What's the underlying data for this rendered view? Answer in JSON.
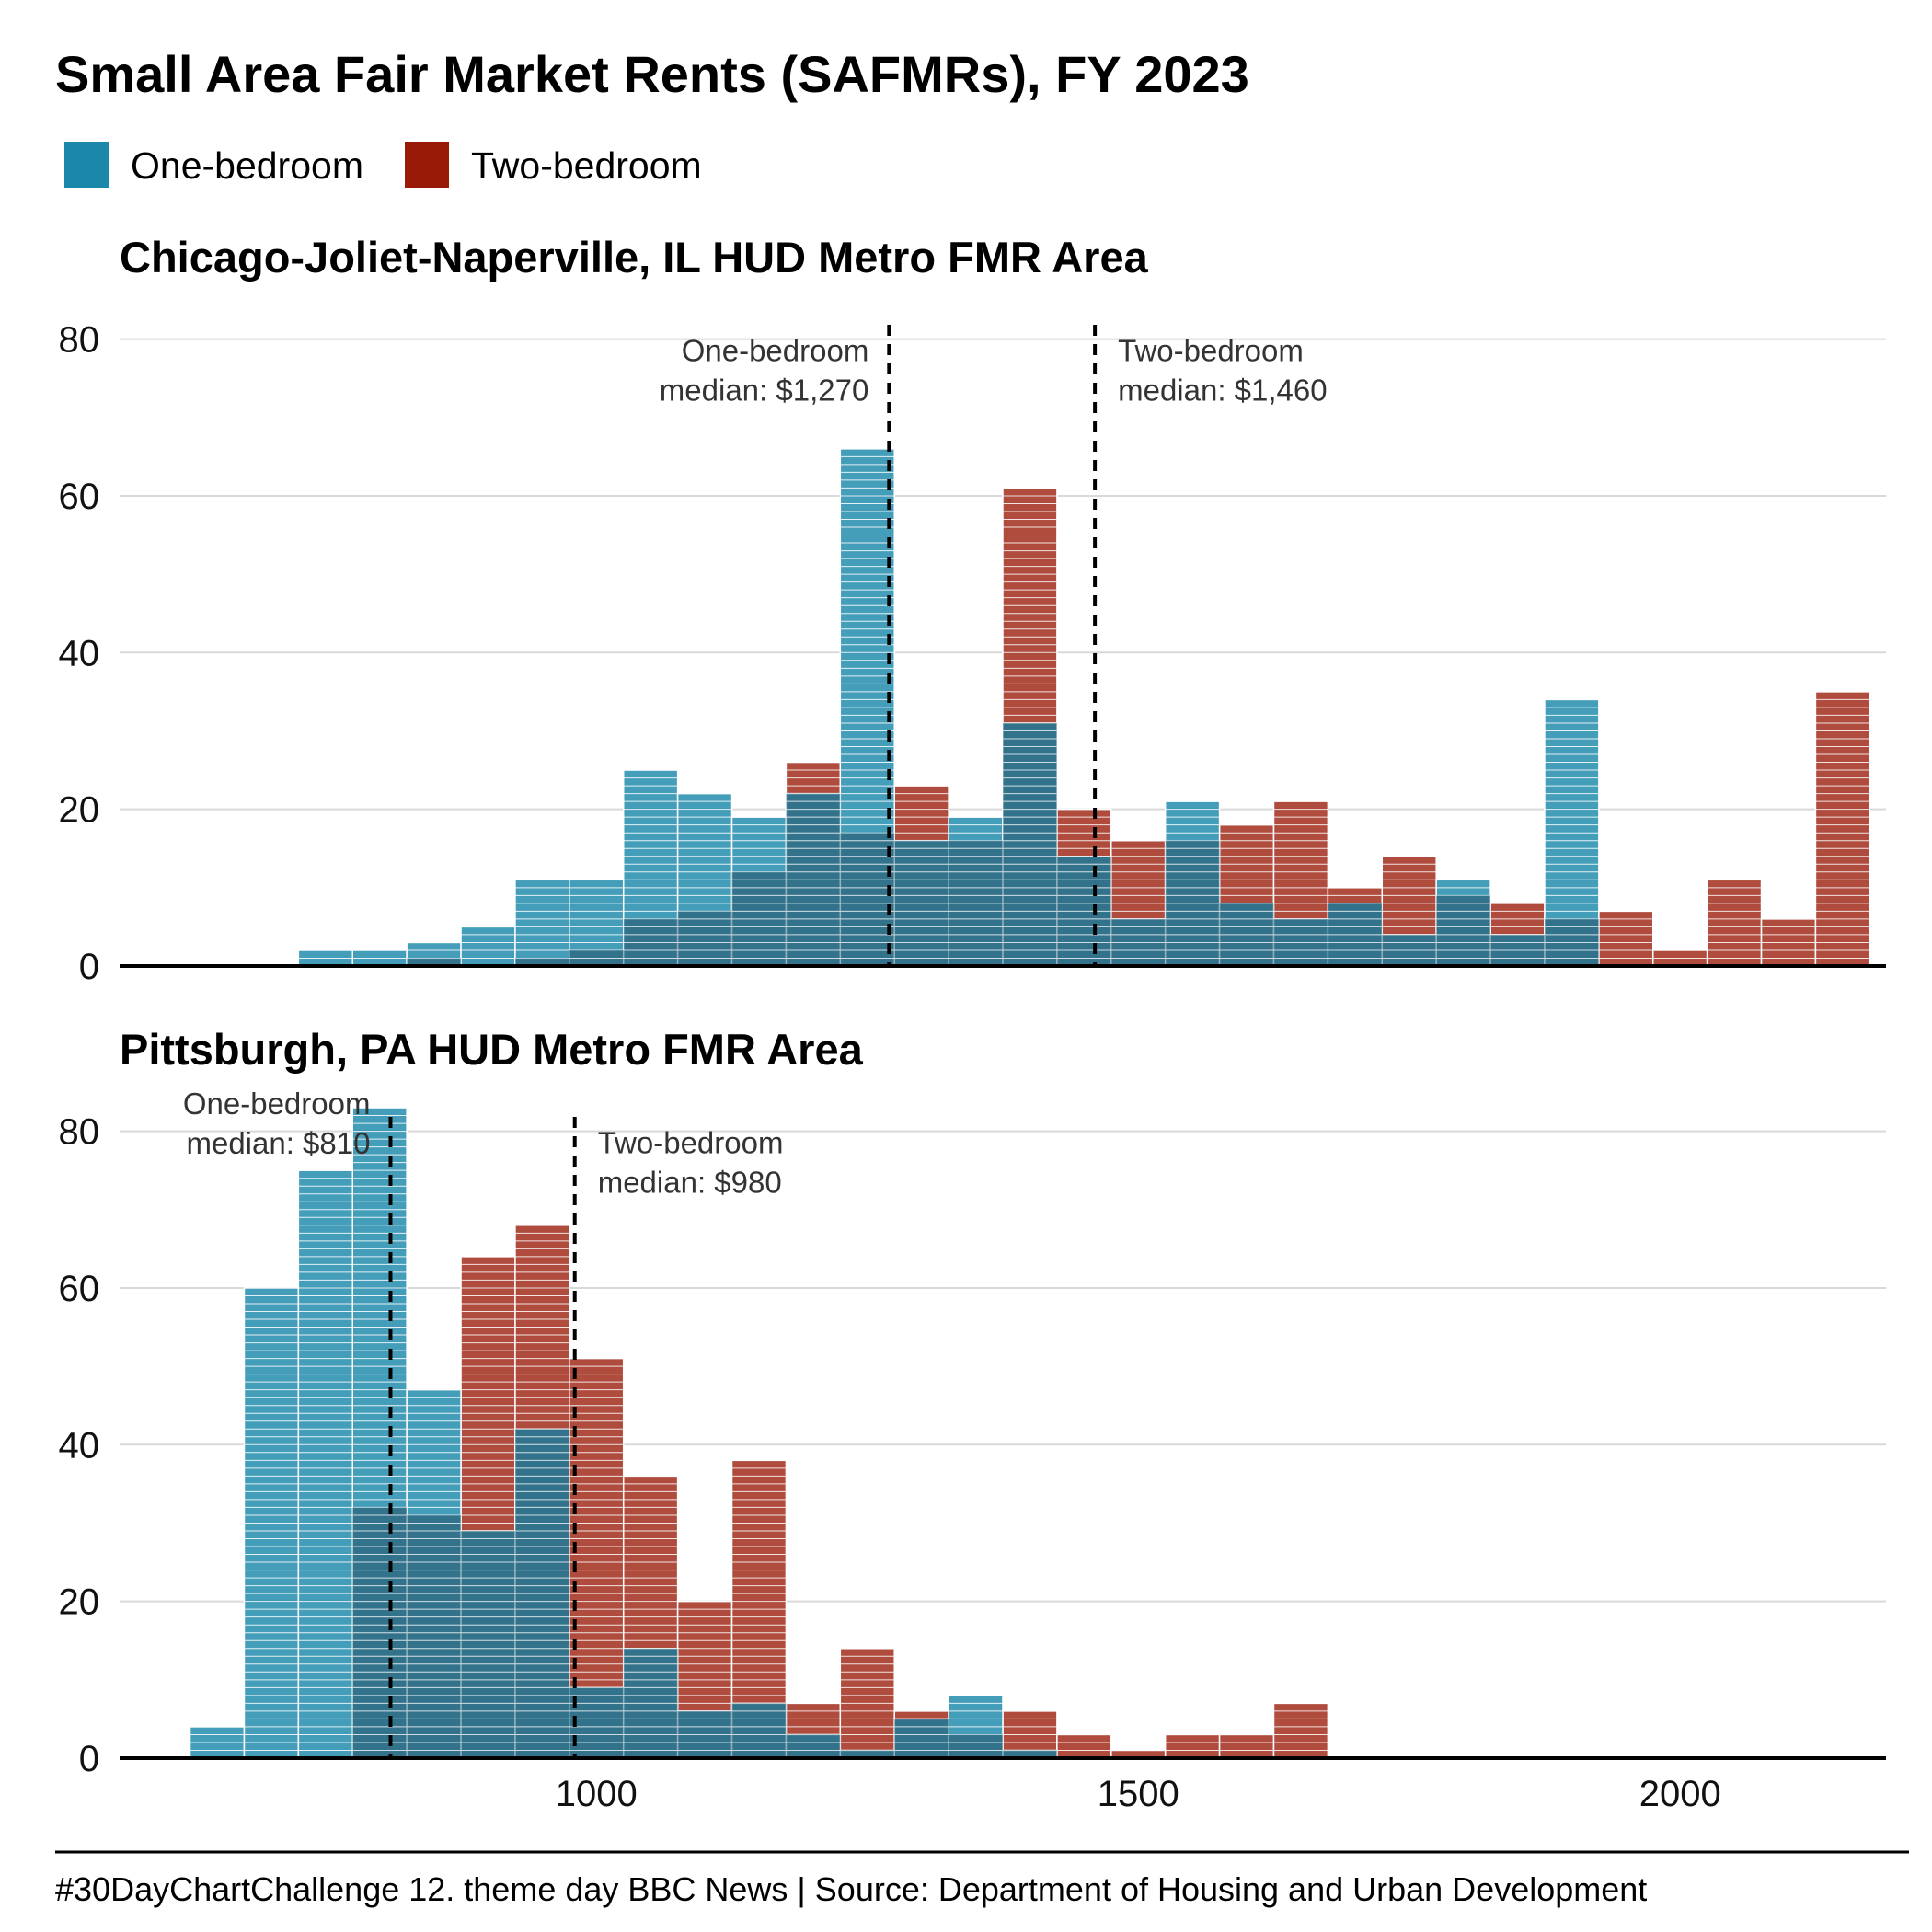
{
  "title": "Small Area Fair Market Rents (SAFMRs), FY 2023",
  "legend": [
    {
      "label": "One-bedroom",
      "color": "#1b87aa"
    },
    {
      "label": "Two-bedroom",
      "color": "#991a07"
    }
  ],
  "caption": "#30DayChartChallenge 12. theme day BBC News | Source: Department of Housing and Urban Development",
  "chart_data": [
    {
      "type": "bar",
      "subtitle": "Chicago-Joliet-Naperville, IL HUD Metro FMR Area",
      "x_range": [
        560,
        2190
      ],
      "bin_width": 50,
      "ylim": [
        0,
        85
      ],
      "y_ticks": [
        0,
        20,
        40,
        60,
        80
      ],
      "x_ticks": [],
      "grid": "horizontal",
      "series": [
        {
          "name": "One-bedroom",
          "color": "#1b87aa",
          "bins": [
            {
              "x0": 725,
              "value": 2
            },
            {
              "x0": 775,
              "value": 2
            },
            {
              "x0": 825,
              "value": 3
            },
            {
              "x0": 875,
              "value": 5
            },
            {
              "x0": 925,
              "value": 11
            },
            {
              "x0": 975,
              "value": 11
            },
            {
              "x0": 1025,
              "value": 25
            },
            {
              "x0": 1075,
              "value": 22
            },
            {
              "x0": 1125,
              "value": 19
            },
            {
              "x0": 1175,
              "value": 22
            },
            {
              "x0": 1225,
              "value": 66
            },
            {
              "x0": 1275,
              "value": 16
            },
            {
              "x0": 1325,
              "value": 19
            },
            {
              "x0": 1375,
              "value": 31
            },
            {
              "x0": 1425,
              "value": 14
            },
            {
              "x0": 1475,
              "value": 6
            },
            {
              "x0": 1525,
              "value": 21
            },
            {
              "x0": 1575,
              "value": 8
            },
            {
              "x0": 1625,
              "value": 6
            },
            {
              "x0": 1675,
              "value": 8
            },
            {
              "x0": 1725,
              "value": 4
            },
            {
              "x0": 1775,
              "value": 11
            },
            {
              "x0": 1825,
              "value": 4
            },
            {
              "x0": 1875,
              "value": 34
            }
          ]
        },
        {
          "name": "Two-bedroom",
          "color": "#991a07",
          "bins": [
            {
              "x0": 825,
              "value": 1
            },
            {
              "x0": 925,
              "value": 1
            },
            {
              "x0": 975,
              "value": 2
            },
            {
              "x0": 1025,
              "value": 6
            },
            {
              "x0": 1075,
              "value": 7
            },
            {
              "x0": 1125,
              "value": 12
            },
            {
              "x0": 1175,
              "value": 26
            },
            {
              "x0": 1225,
              "value": 17
            },
            {
              "x0": 1275,
              "value": 23
            },
            {
              "x0": 1325,
              "value": 16
            },
            {
              "x0": 1375,
              "value": 61
            },
            {
              "x0": 1425,
              "value": 20
            },
            {
              "x0": 1475,
              "value": 16
            },
            {
              "x0": 1525,
              "value": 16
            },
            {
              "x0": 1575,
              "value": 18
            },
            {
              "x0": 1625,
              "value": 21
            },
            {
              "x0": 1675,
              "value": 10
            },
            {
              "x0": 1725,
              "value": 14
            },
            {
              "x0": 1775,
              "value": 9
            },
            {
              "x0": 1825,
              "value": 8
            },
            {
              "x0": 1875,
              "value": 6
            },
            {
              "x0": 1925,
              "value": 7
            },
            {
              "x0": 1975,
              "value": 2
            },
            {
              "x0": 2025,
              "value": 11
            },
            {
              "x0": 2075,
              "value": 6
            },
            {
              "x0": 2125,
              "value": 35
            }
          ]
        }
      ],
      "medians": [
        {
          "series": "One-bedroom",
          "value": 1270,
          "lines": [
            "One-bedroom",
            "median: $1,270"
          ],
          "label_side": "left",
          "label_top": 78.5
        },
        {
          "series": "Two-bedroom",
          "value": 1460,
          "lines": [
            "Two-bedroom",
            "median: $1,460"
          ],
          "label_side": "right",
          "label_top": 78.5
        }
      ]
    },
    {
      "type": "bar",
      "subtitle": "Pittsburgh, PA HUD Metro FMR Area",
      "x_range": [
        560,
        2190
      ],
      "bin_width": 50,
      "ylim": [
        0,
        85
      ],
      "y_ticks": [
        0,
        20,
        40,
        60,
        80
      ],
      "x_ticks": [
        1000,
        1500,
        2000
      ],
      "grid": "horizontal",
      "series": [
        {
          "name": "One-bedroom",
          "color": "#1b87aa",
          "bins": [
            {
              "x0": 625,
              "value": 4
            },
            {
              "x0": 675,
              "value": 60
            },
            {
              "x0": 725,
              "value": 75
            },
            {
              "x0": 775,
              "value": 83
            },
            {
              "x0": 825,
              "value": 47
            },
            {
              "x0": 875,
              "value": 29
            },
            {
              "x0": 925,
              "value": 42
            },
            {
              "x0": 975,
              "value": 9
            },
            {
              "x0": 1025,
              "value": 14
            },
            {
              "x0": 1075,
              "value": 6
            },
            {
              "x0": 1125,
              "value": 7
            },
            {
              "x0": 1175,
              "value": 3
            },
            {
              "x0": 1225,
              "value": 1
            },
            {
              "x0": 1275,
              "value": 5
            },
            {
              "x0": 1325,
              "value": 8
            },
            {
              "x0": 1375,
              "value": 1
            }
          ]
        },
        {
          "name": "Two-bedroom",
          "color": "#991a07",
          "bins": [
            {
              "x0": 775,
              "value": 32
            },
            {
              "x0": 825,
              "value": 31
            },
            {
              "x0": 875,
              "value": 64
            },
            {
              "x0": 925,
              "value": 68
            },
            {
              "x0": 975,
              "value": 51
            },
            {
              "x0": 1025,
              "value": 36
            },
            {
              "x0": 1075,
              "value": 20
            },
            {
              "x0": 1125,
              "value": 38
            },
            {
              "x0": 1175,
              "value": 7
            },
            {
              "x0": 1225,
              "value": 14
            },
            {
              "x0": 1275,
              "value": 6
            },
            {
              "x0": 1325,
              "value": 3
            },
            {
              "x0": 1375,
              "value": 6
            },
            {
              "x0": 1425,
              "value": 3
            },
            {
              "x0": 1475,
              "value": 1
            },
            {
              "x0": 1525,
              "value": 3
            },
            {
              "x0": 1575,
              "value": 3
            },
            {
              "x0": 1625,
              "value": 7
            }
          ]
        }
      ],
      "medians": [
        {
          "series": "One-bedroom",
          "value": 810,
          "lines": [
            "One-bedroom",
            "median: $810"
          ],
          "label_side": "left",
          "label_top": 83.5
        },
        {
          "series": "Two-bedroom",
          "value": 980,
          "lines": [
            "Two-bedroom",
            "median: $980"
          ],
          "label_side": "right",
          "label_top": 78.5
        }
      ]
    }
  ]
}
